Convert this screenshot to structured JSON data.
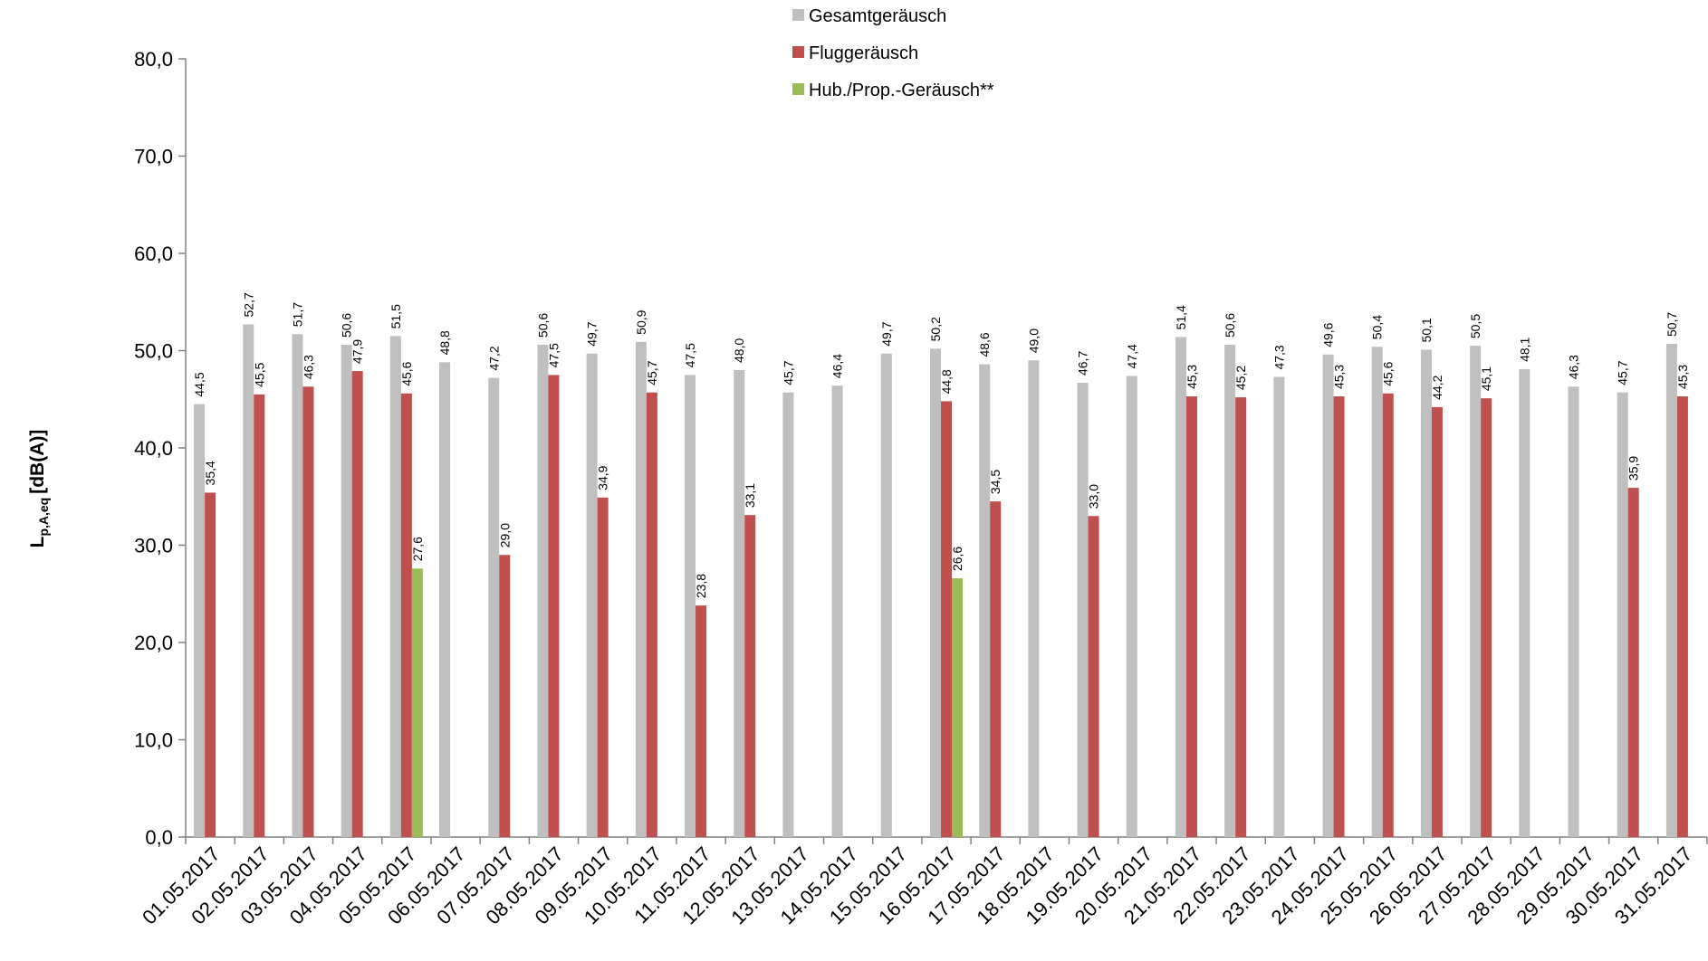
{
  "chart_data": {
    "type": "bar",
    "ylabel_main": "L",
    "ylabel_sub": "p,A,eq",
    "ylabel_unit": "[dB(A)]",
    "ylim": [
      0,
      80
    ],
    "y_ticks": [
      0,
      10,
      20,
      30,
      40,
      50,
      60,
      70,
      80
    ],
    "y_tick_labels": [
      "0,0",
      "10,0",
      "20,0",
      "30,0",
      "40,0",
      "50,0",
      "60,0",
      "70,0",
      "80,0"
    ],
    "grid": false,
    "legend_position": "top-center",
    "categories": [
      "01.05.2017",
      "02.05.2017",
      "03.05.2017",
      "04.05.2017",
      "05.05.2017",
      "06.05.2017",
      "07.05.2017",
      "08.05.2017",
      "09.05.2017",
      "10.05.2017",
      "11.05.2017",
      "12.05.2017",
      "13.05.2017",
      "14.05.2017",
      "15.05.2017",
      "16.05.2017",
      "17.05.2017",
      "18.05.2017",
      "19.05.2017",
      "20.05.2017",
      "21.05.2017",
      "22.05.2017",
      "23.05.2017",
      "24.05.2017",
      "25.05.2017",
      "26.05.2017",
      "27.05.2017",
      "28.05.2017",
      "29.05.2017",
      "30.05.2017",
      "31.05.2017"
    ],
    "series": [
      {
        "name": "Gesamtgeräusch",
        "color": "#bfbfbf",
        "values": [
          44.5,
          52.7,
          51.7,
          50.6,
          51.5,
          48.8,
          47.2,
          50.6,
          49.7,
          50.9,
          47.5,
          48.0,
          45.7,
          46.4,
          49.7,
          50.2,
          48.6,
          49.0,
          46.7,
          47.4,
          51.4,
          50.6,
          47.3,
          49.6,
          50.4,
          50.1,
          50.5,
          48.1,
          46.3,
          45.7,
          50.7
        ],
        "labels": [
          "44,5",
          "52,7",
          "51,7",
          "50,6",
          "51,5",
          "48,8",
          "47,2",
          "50,6",
          "49,7",
          "50,9",
          "47,5",
          "48,0",
          "45,7",
          "46,4",
          "49,7",
          "50,2",
          "48,6",
          "49,0",
          "46,7",
          "47,4",
          "51,4",
          "50,6",
          "47,3",
          "49,6",
          "50,4",
          "50,1",
          "50,5",
          "48,1",
          "46,3",
          "45,7",
          "50,7"
        ]
      },
      {
        "name": "Fluggeräusch",
        "color": "#c0504d",
        "values": [
          35.4,
          45.5,
          46.3,
          47.9,
          45.6,
          null,
          29.0,
          47.5,
          34.9,
          45.7,
          23.8,
          33.1,
          null,
          null,
          null,
          44.8,
          34.5,
          null,
          33.0,
          null,
          45.3,
          45.2,
          null,
          45.3,
          45.6,
          44.2,
          45.1,
          null,
          null,
          35.9,
          45.3
        ],
        "labels": [
          "35,4",
          "45,5",
          "46,3",
          "47,9",
          "45,6",
          null,
          "29,0",
          "47,5",
          "34,9",
          "45,7",
          "23,8",
          "33,1",
          null,
          null,
          null,
          "44,8",
          "34,5",
          null,
          "33,0",
          null,
          "45,3",
          "45,2",
          null,
          "45,3",
          "45,6",
          "44,2",
          "45,1",
          null,
          null,
          "35,9",
          "45,3"
        ]
      },
      {
        "name": "Hub./Prop.-Geräusch**",
        "color": "#9bbb59",
        "values": [
          null,
          null,
          null,
          null,
          27.6,
          null,
          null,
          null,
          null,
          null,
          null,
          null,
          null,
          null,
          null,
          26.6,
          null,
          null,
          null,
          null,
          null,
          null,
          null,
          null,
          null,
          null,
          null,
          null,
          null,
          null,
          null
        ],
        "labels": [
          null,
          null,
          null,
          null,
          "27,6",
          null,
          null,
          null,
          null,
          null,
          null,
          null,
          null,
          null,
          null,
          "26,6",
          null,
          null,
          null,
          null,
          null,
          null,
          null,
          null,
          null,
          null,
          null,
          null,
          null,
          null,
          null
        ]
      }
    ]
  }
}
